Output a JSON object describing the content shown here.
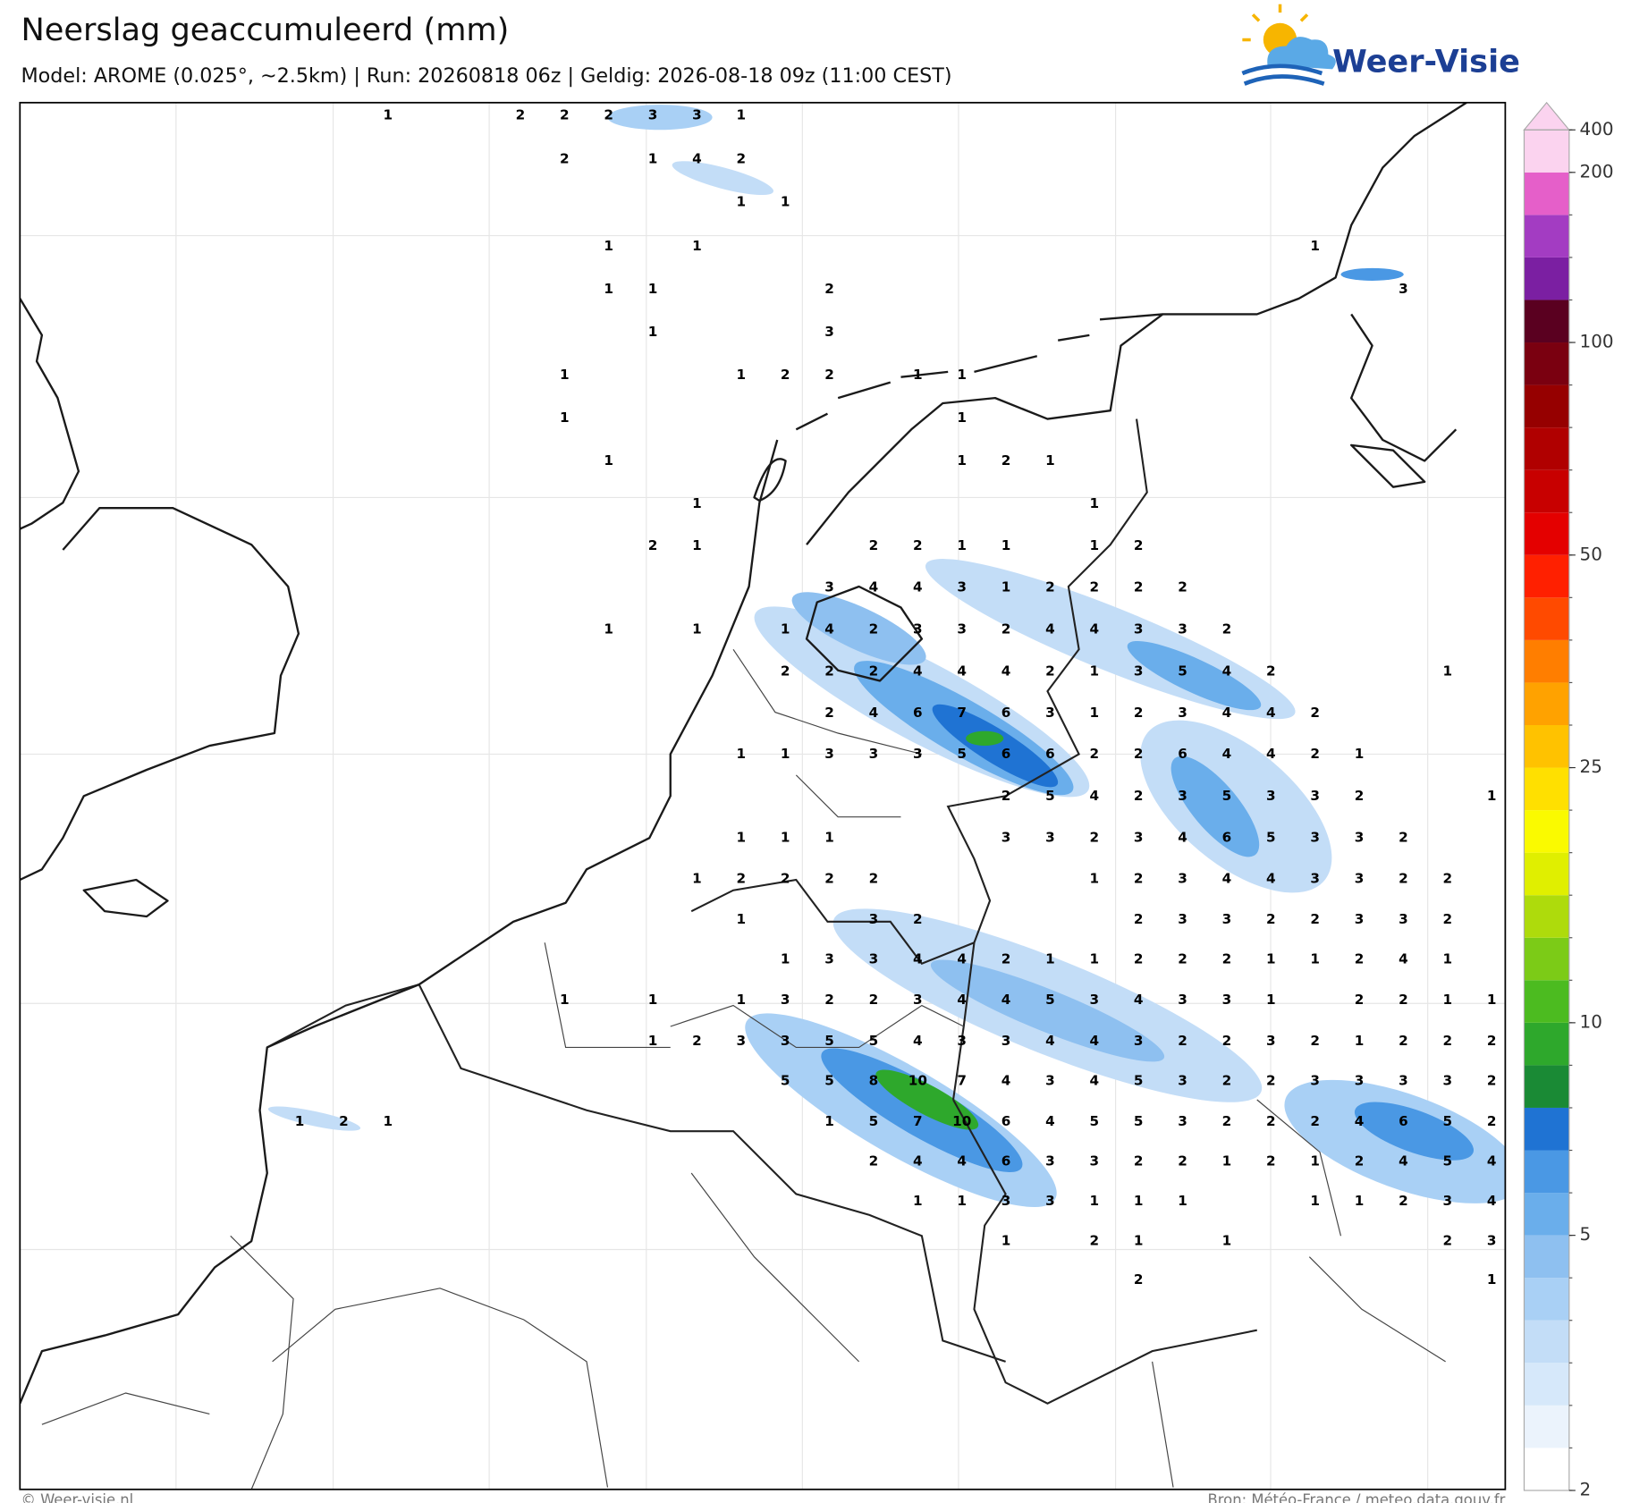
{
  "header": {
    "title": "Neerslag geaccumuleerd (mm)",
    "subtitle": "Model: AROME (0.025°, ~2.5km)  |  Run: 20260818 06z  |  Geldig: 2026-08-18 09z (11:00 CEST)",
    "logo_text": "Weer-Visie"
  },
  "map": {
    "grid_values": [
      [
        null,
        null,
        1,
        null,
        null,
        2,
        2,
        2,
        3,
        3,
        1,
        null,
        null,
        null,
        null,
        null,
        null,
        null,
        null,
        null,
        null,
        null,
        null,
        null,
        null,
        null,
        null,
        null
      ],
      [
        null,
        null,
        null,
        null,
        null,
        null,
        2,
        null,
        1,
        4,
        2,
        null,
        null,
        null,
        null,
        null,
        null,
        null,
        null,
        null,
        null,
        null,
        null,
        null,
        null,
        null,
        null,
        null
      ],
      [
        null,
        null,
        null,
        null,
        null,
        null,
        null,
        null,
        null,
        null,
        1,
        1,
        null,
        null,
        null,
        null,
        null,
        null,
        null,
        null,
        null,
        null,
        null,
        null,
        null,
        null,
        null,
        null
      ],
      [
        null,
        null,
        null,
        null,
        null,
        null,
        null,
        1,
        null,
        1,
        null,
        null,
        null,
        null,
        null,
        null,
        null,
        null,
        null,
        null,
        null,
        null,
        null,
        1,
        null,
        null,
        null,
        null
      ],
      [
        null,
        null,
        null,
        null,
        null,
        null,
        null,
        1,
        1,
        null,
        null,
        null,
        2,
        null,
        null,
        null,
        null,
        null,
        null,
        null,
        null,
        null,
        null,
        null,
        null,
        3,
        null,
        null
      ],
      [
        null,
        null,
        null,
        null,
        null,
        null,
        null,
        null,
        1,
        null,
        null,
        null,
        3,
        null,
        null,
        null,
        null,
        null,
        null,
        null,
        null,
        null,
        null,
        null,
        null,
        null,
        null,
        null
      ],
      [
        null,
        null,
        null,
        null,
        null,
        null,
        1,
        null,
        null,
        null,
        1,
        2,
        2,
        null,
        1,
        1,
        null,
        null,
        null,
        null,
        null,
        null,
        null,
        null,
        null,
        null,
        null,
        null
      ],
      [
        null,
        null,
        null,
        null,
        null,
        null,
        1,
        null,
        null,
        null,
        null,
        null,
        null,
        null,
        null,
        1,
        null,
        null,
        null,
        null,
        null,
        null,
        null,
        null,
        null,
        null,
        null,
        null
      ],
      [
        null,
        null,
        null,
        null,
        null,
        null,
        null,
        1,
        null,
        null,
        null,
        null,
        null,
        null,
        null,
        1,
        2,
        1,
        null,
        null,
        null,
        null,
        null,
        null,
        null,
        null,
        null,
        null
      ],
      [
        null,
        null,
        null,
        null,
        null,
        null,
        null,
        null,
        null,
        1,
        null,
        null,
        null,
        null,
        null,
        null,
        null,
        null,
        1,
        null,
        null,
        null,
        null,
        null,
        null,
        null,
        null,
        null
      ],
      [
        null,
        null,
        null,
        null,
        null,
        null,
        null,
        null,
        2,
        1,
        null,
        null,
        null,
        2,
        2,
        1,
        1,
        null,
        1,
        2,
        null,
        null,
        null,
        null,
        null,
        null,
        null,
        null
      ],
      [
        null,
        null,
        null,
        null,
        null,
        null,
        null,
        null,
        null,
        null,
        null,
        null,
        3,
        4,
        4,
        3,
        1,
        2,
        2,
        2,
        2,
        null,
        null,
        null,
        null,
        null,
        null,
        null
      ],
      [
        null,
        null,
        null,
        null,
        null,
        null,
        null,
        1,
        null,
        1,
        null,
        1,
        4,
        2,
        3,
        3,
        2,
        4,
        4,
        3,
        3,
        2,
        null,
        null,
        null,
        null,
        null,
        null
      ],
      [
        null,
        null,
        null,
        null,
        null,
        null,
        null,
        null,
        null,
        null,
        null,
        2,
        2,
        2,
        4,
        4,
        4,
        2,
        1,
        3,
        5,
        4,
        2,
        null,
        null,
        null,
        1,
        null
      ],
      [
        null,
        null,
        null,
        null,
        null,
        null,
        null,
        null,
        null,
        null,
        null,
        null,
        2,
        4,
        6,
        7,
        6,
        3,
        1,
        2,
        3,
        4,
        4,
        2,
        null,
        null,
        null,
        null
      ],
      [
        null,
        null,
        null,
        null,
        null,
        null,
        null,
        null,
        null,
        null,
        1,
        1,
        3,
        3,
        3,
        5,
        6,
        6,
        2,
        2,
        6,
        4,
        4,
        2,
        1,
        null,
        null,
        null
      ],
      [
        null,
        null,
        null,
        null,
        null,
        null,
        null,
        null,
        null,
        null,
        null,
        null,
        null,
        null,
        null,
        null,
        2,
        5,
        4,
        2,
        3,
        5,
        3,
        3,
        2,
        null,
        null,
        1
      ],
      [
        null,
        null,
        null,
        null,
        null,
        null,
        null,
        null,
        null,
        null,
        1,
        1,
        1,
        null,
        null,
        null,
        3,
        3,
        2,
        3,
        4,
        6,
        5,
        3,
        3,
        2,
        null,
        null
      ],
      [
        null,
        null,
        null,
        null,
        null,
        null,
        null,
        null,
        null,
        1,
        2,
        2,
        2,
        2,
        null,
        null,
        null,
        null,
        1,
        2,
        3,
        4,
        4,
        3,
        3,
        2,
        2,
        null
      ],
      [
        null,
        null,
        null,
        null,
        null,
        null,
        null,
        null,
        null,
        null,
        1,
        null,
        null,
        3,
        2,
        null,
        null,
        null,
        null,
        2,
        3,
        3,
        2,
        2,
        3,
        3,
        2,
        null
      ],
      [
        null,
        null,
        null,
        null,
        null,
        null,
        null,
        null,
        null,
        null,
        null,
        1,
        3,
        3,
        4,
        4,
        2,
        1,
        1,
        2,
        2,
        2,
        1,
        1,
        2,
        4,
        1,
        null
      ],
      [
        null,
        null,
        null,
        null,
        null,
        null,
        1,
        null,
        1,
        null,
        1,
        3,
        2,
        2,
        3,
        4,
        4,
        5,
        3,
        4,
        3,
        3,
        1,
        null,
        2,
        2,
        1,
        1
      ],
      [
        null,
        null,
        null,
        null,
        null,
        null,
        null,
        null,
        1,
        2,
        3,
        3,
        5,
        5,
        4,
        3,
        3,
        4,
        4,
        3,
        2,
        2,
        3,
        2,
        1,
        2,
        2,
        2
      ],
      [
        null,
        null,
        null,
        null,
        null,
        null,
        null,
        null,
        null,
        null,
        null,
        5,
        5,
        8,
        10,
        7,
        4,
        3,
        4,
        5,
        3,
        2,
        2,
        3,
        3,
        3,
        3,
        2
      ],
      [
        1,
        2,
        1,
        null,
        null,
        null,
        null,
        null,
        null,
        null,
        null,
        null,
        1,
        5,
        7,
        10,
        6,
        4,
        5,
        5,
        3,
        2,
        2,
        2,
        4,
        6,
        5,
        2
      ],
      [
        null,
        null,
        null,
        null,
        null,
        null,
        null,
        null,
        null,
        null,
        null,
        null,
        null,
        2,
        4,
        4,
        6,
        3,
        3,
        2,
        2,
        1,
        2,
        1,
        2,
        4,
        5,
        4
      ],
      [
        null,
        null,
        null,
        null,
        null,
        null,
        null,
        null,
        null,
        null,
        null,
        null,
        null,
        null,
        1,
        1,
        3,
        3,
        1,
        1,
        1,
        null,
        null,
        1,
        1,
        2,
        3,
        4
      ],
      [
        null,
        null,
        null,
        null,
        null,
        null,
        null,
        null,
        null,
        null,
        null,
        null,
        null,
        null,
        null,
        null,
        1,
        null,
        2,
        1,
        null,
        1,
        null,
        null,
        null,
        null,
        2,
        3
      ],
      [
        null,
        null,
        null,
        null,
        null,
        null,
        null,
        null,
        null,
        null,
        null,
        null,
        null,
        null,
        null,
        null,
        null,
        null,
        null,
        2,
        null,
        null,
        null,
        null,
        null,
        null,
        null,
        1
      ]
    ]
  },
  "colorbar": {
    "levels": [
      2,
      2.5,
      3,
      3.5,
      4,
      4.5,
      5,
      6,
      7,
      8,
      9,
      10,
      12,
      14,
      16,
      18,
      20,
      25,
      30,
      35,
      40,
      45,
      50,
      60,
      70,
      80,
      90,
      100,
      125,
      150,
      175,
      200,
      400
    ],
    "ticks": [
      2,
      5,
      10,
      25,
      50,
      100,
      200,
      400
    ],
    "colors": [
      "#ffffff",
      "#ebf3fc",
      "#d6e8fa",
      "#c3ddf7",
      "#a9d0f5",
      "#8ec0f0",
      "#6aaeeb",
      "#4a98e4",
      "#1f73d3",
      "#1a8a35",
      "#2ea82c",
      "#4cbb20",
      "#7ccb17",
      "#aedb0c",
      "#e0ef00",
      "#fafa00",
      "#ffe000",
      "#ffc200",
      "#ffa200",
      "#ff7e00",
      "#ff4a00",
      "#ff2000",
      "#e40000",
      "#c80000",
      "#b00000",
      "#960000",
      "#7a0010",
      "#5a0020",
      "#7b1fa2",
      "#a33cc2",
      "#e55fc9",
      "#fbd3ef"
    ],
    "over_color": "#fbd3ef"
  },
  "footer": {
    "credit": "© Weer-visie.nl",
    "source": "Bron: Météo-France / meteo.data.gouv.fr"
  }
}
